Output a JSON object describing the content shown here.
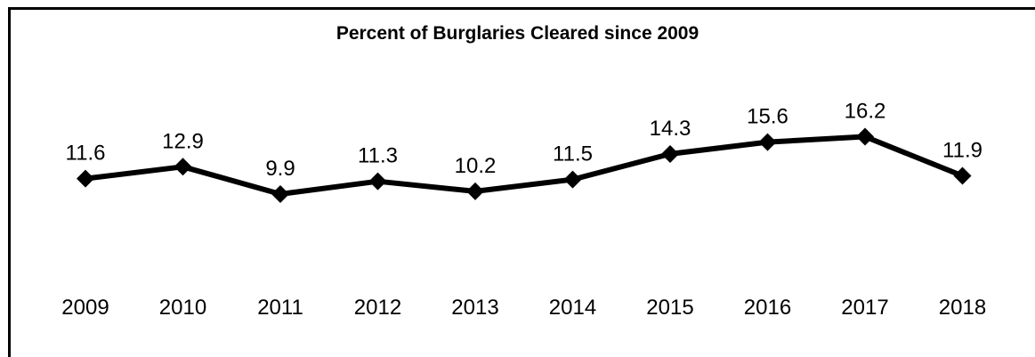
{
  "chart_data": {
    "type": "line",
    "title": "Percent of Burglaries Cleared since 2009",
    "categories": [
      "2009",
      "2010",
      "2011",
      "2012",
      "2013",
      "2014",
      "2015",
      "2016",
      "2017",
      "2018"
    ],
    "series": [
      {
        "values": [
          11.6,
          12.9,
          9.9,
          11.3,
          10.2,
          11.5,
          14.3,
          15.6,
          16.2,
          11.9
        ]
      }
    ],
    "data_labels": [
      "11.6",
      "12.9",
      "9.9",
      "11.3",
      "10.2",
      "11.5",
      "14.3",
      "15.6",
      "16.2",
      "11.9"
    ],
    "marker": "diamond",
    "line_color": "#000000",
    "grid": false,
    "legend": "none",
    "xlabel": "",
    "ylabel": ""
  }
}
